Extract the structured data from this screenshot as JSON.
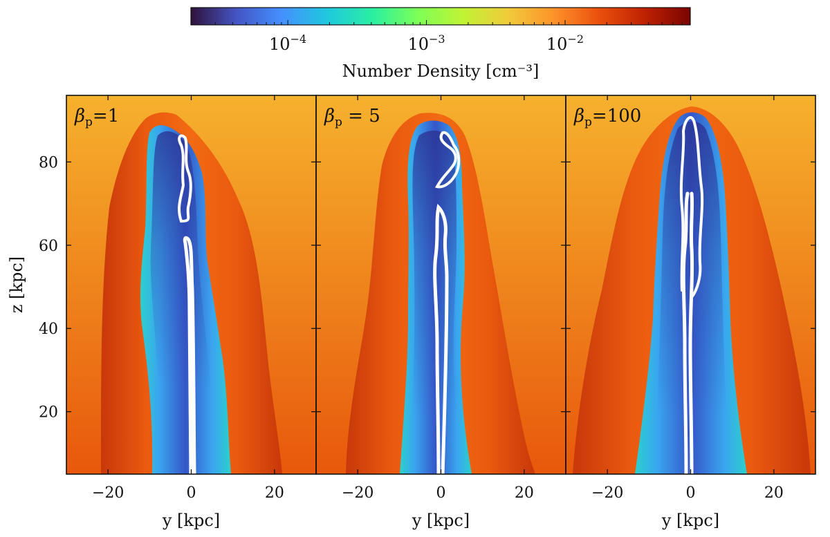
{
  "colorbar": {
    "label": "Number Density [cm⁻³]",
    "scale": "log",
    "range": [
      2e-05,
      0.08
    ],
    "ticks": [
      {
        "value": 0.0001,
        "mantissa": "10",
        "exponent": "−4"
      },
      {
        "value": 0.001,
        "mantissa": "10",
        "exponent": "−3"
      },
      {
        "value": 0.01,
        "mantissa": "10",
        "exponent": "−2"
      }
    ],
    "colormap": [
      "#30123b",
      "#4454c4",
      "#4490fe",
      "#1fc8de",
      "#29efa2",
      "#7dff56",
      "#c1f334",
      "#f1ca3a",
      "#fe922a",
      "#ea4f0d",
      "#be2102",
      "#7a0403"
    ]
  },
  "axes": {
    "x_label": "y [kpc]",
    "y_label": "z [kpc]",
    "x_range": [
      -30,
      30
    ],
    "y_range": [
      5,
      96
    ],
    "x_ticks": [
      -20,
      0,
      20
    ],
    "x_tick_labels": [
      "−20",
      "0",
      "20"
    ],
    "y_ticks": [
      20,
      40,
      60,
      80
    ],
    "y_tick_labels": [
      "20",
      "40",
      "60",
      "80"
    ]
  },
  "panels": [
    {
      "beta_label": "β",
      "beta_sub": "p",
      "beta_value": "=1"
    },
    {
      "beta_label": "β",
      "beta_sub": "p",
      "beta_value": " = 5"
    },
    {
      "beta_label": "β",
      "beta_sub": "p",
      "beta_value": "=100"
    }
  ],
  "colors": {
    "ambient_top": "#f6b12d",
    "ambient_bottom": "#e8580c",
    "cocoon_edge": "#d8420b",
    "lobe_light": "#2ec9d8",
    "lobe_mid": "#3f7ef2",
    "lobe_dark": "#2a2f8e",
    "tracer": "#ffffff"
  }
}
